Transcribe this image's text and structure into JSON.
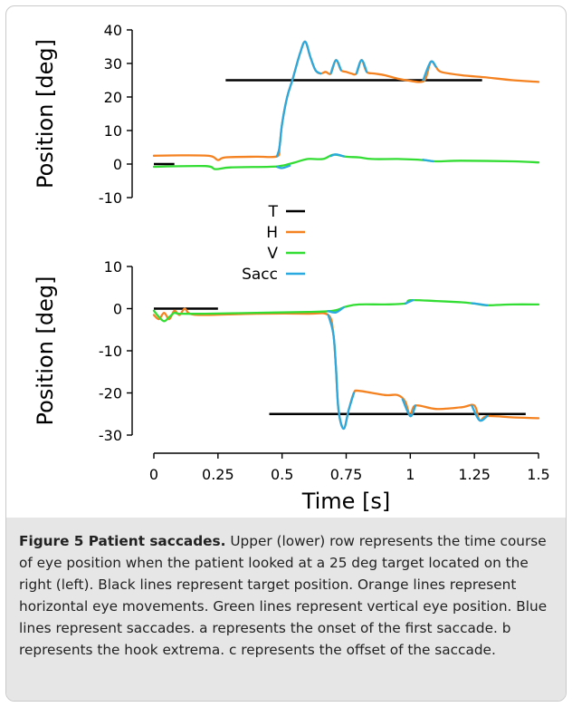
{
  "caption": {
    "title": "Figure 5 Patient saccades.",
    "text": "Upper (lower) row represents the time course of eye position when the patient looked at a 25 deg target located on the right (left). Black lines represent target position. Orange lines represent horizontal eye movements. Green lines represent vertical eye position. Blue lines represent saccades. a represents the onset of the first saccade. b represents the hook extrema. c represents the offset of the saccade."
  },
  "chart_data": [
    {
      "type": "line",
      "panel": "upper",
      "ylabel": "Position [deg]",
      "xlabel": "",
      "ylim": [
        -10,
        40
      ],
      "yticks": [
        "40",
        "30",
        "20",
        "10",
        "0",
        "-10"
      ],
      "xlim": [
        0,
        1.5
      ],
      "series": [
        {
          "name": "T",
          "color": "#000000",
          "segments": [
            [
              [
                0,
                0
              ],
              [
                0.08,
                0
              ]
            ],
            [
              [
                0.28,
                25
              ],
              [
                1.28,
                25
              ]
            ]
          ]
        },
        {
          "name": "H",
          "color": "#f58220",
          "points": [
            [
              0,
              2.5
            ],
            [
              0.12,
              2.6
            ],
            [
              0.22,
              2.4
            ],
            [
              0.25,
              1.2
            ],
            [
              0.28,
              2.0
            ],
            [
              0.4,
              2.2
            ],
            [
              0.48,
              2.3
            ],
            [
              0.49,
              5
            ],
            [
              0.5,
              12
            ],
            [
              0.52,
              20
            ],
            [
              0.54,
              25
            ],
            [
              0.57,
              33
            ],
            [
              0.59,
              36.5
            ],
            [
              0.61,
              32
            ],
            [
              0.63,
              28
            ],
            [
              0.65,
              27
            ],
            [
              0.67,
              27.5
            ],
            [
              0.69,
              27
            ],
            [
              0.71,
              31
            ],
            [
              0.73,
              28
            ],
            [
              0.75,
              27.5
            ],
            [
              0.77,
              27
            ],
            [
              0.79,
              27
            ],
            [
              0.81,
              31
            ],
            [
              0.83,
              27.5
            ],
            [
              0.86,
              27
            ],
            [
              0.9,
              26.5
            ],
            [
              0.95,
              25.5
            ],
            [
              1.0,
              24.8
            ],
            [
              1.04,
              24.5
            ],
            [
              1.06,
              25.5
            ],
            [
              1.08,
              30.5
            ],
            [
              1.1,
              29
            ],
            [
              1.12,
              27.5
            ],
            [
              1.2,
              26.5
            ],
            [
              1.3,
              25.8
            ],
            [
              1.4,
              25
            ],
            [
              1.5,
              24.5
            ]
          ]
        },
        {
          "name": "V",
          "color": "#33dd33",
          "points": [
            [
              0,
              -0.8
            ],
            [
              0.2,
              -0.6
            ],
            [
              0.24,
              -1.5
            ],
            [
              0.3,
              -1.0
            ],
            [
              0.45,
              -0.8
            ],
            [
              0.5,
              -0.5
            ],
            [
              0.55,
              0.5
            ],
            [
              0.6,
              1.5
            ],
            [
              0.66,
              1.5
            ],
            [
              0.7,
              2.8
            ],
            [
              0.75,
              2.2
            ],
            [
              0.8,
              2.0
            ],
            [
              0.85,
              1.5
            ],
            [
              0.95,
              1.5
            ],
            [
              1.05,
              1.2
            ],
            [
              1.1,
              0.8
            ],
            [
              1.2,
              1.0
            ],
            [
              1.4,
              0.8
            ],
            [
              1.5,
              0.5
            ]
          ]
        },
        {
          "name": "Sacc",
          "color": "#29a9e0",
          "segments": [
            [
              [
                0.48,
                2.3
              ],
              [
                0.49,
                5
              ],
              [
                0.5,
                12
              ],
              [
                0.52,
                20
              ],
              [
                0.54,
                25
              ],
              [
                0.57,
                33
              ],
              [
                0.59,
                36.5
              ],
              [
                0.61,
                32
              ],
              [
                0.63,
                28
              ],
              [
                0.65,
                27
              ]
            ],
            [
              [
                0.69,
                27
              ],
              [
                0.71,
                31
              ],
              [
                0.73,
                28
              ]
            ],
            [
              [
                0.79,
                27
              ],
              [
                0.81,
                31
              ],
              [
                0.83,
                27.5
              ]
            ],
            [
              [
                1.05,
                25
              ],
              [
                1.08,
                30.5
              ],
              [
                1.1,
                29
              ]
            ],
            [
              [
                0.48,
                -0.8
              ],
              [
                0.5,
                -1.2
              ],
              [
                0.53,
                -0.5
              ]
            ],
            [
              [
                0.69,
                2.4
              ],
              [
                0.71,
                2.9
              ],
              [
                0.74,
                2.3
              ]
            ],
            [
              [
                1.05,
                1.3
              ],
              [
                1.09,
                0.8
              ]
            ]
          ]
        }
      ]
    },
    {
      "type": "line",
      "panel": "lower",
      "ylabel": "Position [deg]",
      "xlabel": "Time [s]",
      "ylim": [
        -30,
        10
      ],
      "yticks": [
        "10",
        "0",
        "-10",
        "-20",
        "-30"
      ],
      "xlim": [
        0,
        1.5
      ],
      "xticks": [
        "0",
        "0.25",
        "0.5",
        "0.75",
        "1",
        "1.25",
        "1.5"
      ],
      "series": [
        {
          "name": "T",
          "color": "#000000",
          "segments": [
            [
              [
                0,
                0
              ],
              [
                0.25,
                0
              ]
            ],
            [
              [
                0.45,
                -25
              ],
              [
                1.45,
                -25
              ]
            ]
          ]
        },
        {
          "name": "H",
          "color": "#f58220",
          "points": [
            [
              0,
              -1.5
            ],
            [
              0.02,
              -2.5
            ],
            [
              0.04,
              -1.0
            ],
            [
              0.06,
              -2.5
            ],
            [
              0.08,
              -0.5
            ],
            [
              0.1,
              -1.5
            ],
            [
              0.12,
              0
            ],
            [
              0.14,
              -1.2
            ],
            [
              0.2,
              -1.5
            ],
            [
              0.4,
              -1.2
            ],
            [
              0.6,
              -1.2
            ],
            [
              0.68,
              -1.5
            ],
            [
              0.7,
              -6
            ],
            [
              0.71,
              -14
            ],
            [
              0.72,
              -24
            ],
            [
              0.74,
              -28.5
            ],
            [
              0.76,
              -24
            ],
            [
              0.78,
              -20
            ],
            [
              0.8,
              -19.5
            ],
            [
              0.9,
              -20.5
            ],
            [
              0.95,
              -20.5
            ],
            [
              0.98,
              -22
            ],
            [
              1.0,
              -25.5
            ],
            [
              1.02,
              -23
            ],
            [
              1.1,
              -23.8
            ],
            [
              1.2,
              -23.4
            ],
            [
              1.25,
              -23
            ],
            [
              1.27,
              -26.5
            ],
            [
              1.3,
              -25.5
            ],
            [
              1.4,
              -25.8
            ],
            [
              1.5,
              -26
            ]
          ]
        },
        {
          "name": "V",
          "color": "#33dd33",
          "points": [
            [
              0,
              -0.5
            ],
            [
              0.02,
              -2
            ],
            [
              0.04,
              -3
            ],
            [
              0.06,
              -2
            ],
            [
              0.08,
              -1
            ],
            [
              0.1,
              -1.2
            ],
            [
              0.2,
              -1.2
            ],
            [
              0.4,
              -1
            ],
            [
              0.6,
              -0.8
            ],
            [
              0.7,
              -0.5
            ],
            [
              0.75,
              0.5
            ],
            [
              0.8,
              1.0
            ],
            [
              0.9,
              1.0
            ],
            [
              0.98,
              1.2
            ],
            [
              1.0,
              2.0
            ],
            [
              1.1,
              1.8
            ],
            [
              1.2,
              1.5
            ],
            [
              1.25,
              1.2
            ],
            [
              1.3,
              0.8
            ],
            [
              1.4,
              1.0
            ],
            [
              1.5,
              1.0
            ]
          ]
        },
        {
          "name": "Sacc",
          "color": "#29a9e0",
          "segments": [
            [
              [
                0.68,
                -1.5
              ],
              [
                0.7,
                -6
              ],
              [
                0.71,
                -14
              ],
              [
                0.72,
                -24
              ],
              [
                0.74,
                -28.5
              ],
              [
                0.76,
                -24
              ],
              [
                0.78,
                -20
              ]
            ],
            [
              [
                0.97,
                -21.5
              ],
              [
                1.0,
                -25.5
              ],
              [
                1.02,
                -23
              ]
            ],
            [
              [
                1.24,
                -23
              ],
              [
                1.27,
                -26.5
              ],
              [
                1.3,
                -25.5
              ]
            ],
            [
              [
                0.68,
                -0.6
              ],
              [
                0.71,
                -0.9
              ],
              [
                0.74,
                0.3
              ]
            ],
            [
              [
                0.98,
                1.2
              ],
              [
                1.01,
                2.0
              ]
            ],
            [
              [
                1.24,
                1.3
              ],
              [
                1.3,
                0.8
              ]
            ]
          ]
        }
      ]
    }
  ],
  "legend": {
    "entries": [
      {
        "label": "T",
        "color": "#000000"
      },
      {
        "label": "H",
        "color": "#f58220"
      },
      {
        "label": "V",
        "color": "#33dd33"
      },
      {
        "label": "Sacc",
        "color": "#29a9e0"
      }
    ]
  }
}
